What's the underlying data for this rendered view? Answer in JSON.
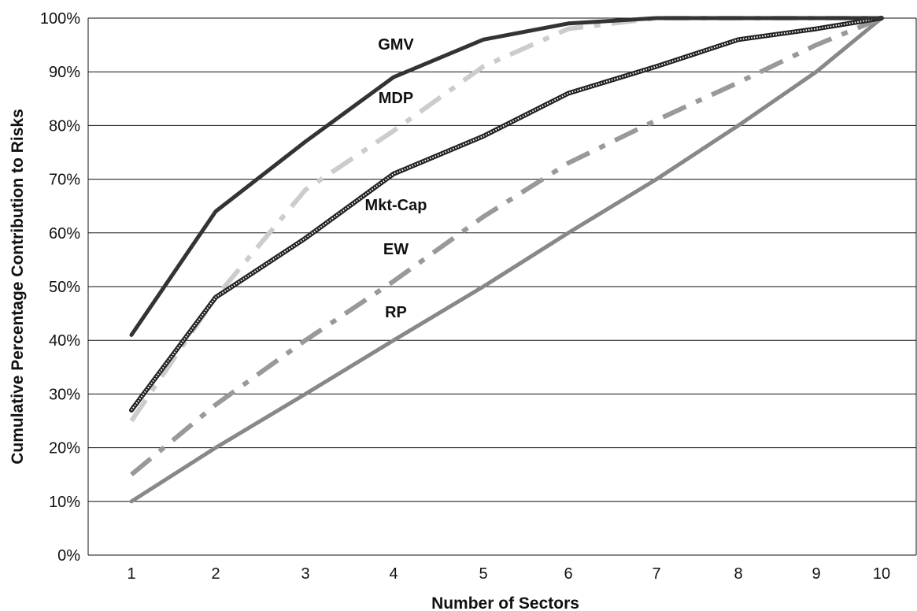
{
  "chart_data": {
    "type": "line",
    "title": "",
    "xlabel": "Number of Sectors",
    "ylabel": "Cumulative Percentage Contribution to Risks",
    "x": [
      1,
      2,
      3,
      4,
      5,
      6,
      7,
      8,
      9,
      10
    ],
    "x_tick_labels": [
      "1",
      "2",
      "3",
      "4",
      "5",
      "6",
      "7",
      "8",
      "9",
      "10"
    ],
    "y_tick_labels": [
      "0%",
      "10%",
      "20%",
      "30%",
      "40%",
      "50%",
      "60%",
      "70%",
      "80%",
      "90%",
      "100%"
    ],
    "ylim": [
      0,
      100
    ],
    "y_unit": "%",
    "grid": "horizontal",
    "legend": "none",
    "series": [
      {
        "name": "GMV",
        "values": [
          41,
          64,
          77,
          89,
          96,
          99,
          100,
          100,
          100,
          100
        ],
        "color": "#333333",
        "style": "solid"
      },
      {
        "name": "MDP",
        "values": [
          25,
          48,
          68,
          79,
          91,
          98,
          100,
          100,
          100,
          100
        ],
        "color": "#cccccc",
        "style": "dash-dot"
      },
      {
        "name": "Mkt-Cap",
        "values": [
          27,
          48,
          59,
          71,
          78,
          86,
          91,
          96,
          98,
          100
        ],
        "color": "#222222",
        "style": "hatched"
      },
      {
        "name": "EW",
        "values": [
          15,
          28,
          40,
          51,
          63,
          73,
          81,
          88,
          95,
          100
        ],
        "color": "#999999",
        "style": "dash-dot"
      },
      {
        "name": "RP",
        "values": [
          10,
          20,
          30,
          40,
          50,
          60,
          70,
          80,
          90,
          100
        ],
        "color": "#888888",
        "style": "solid"
      }
    ]
  }
}
